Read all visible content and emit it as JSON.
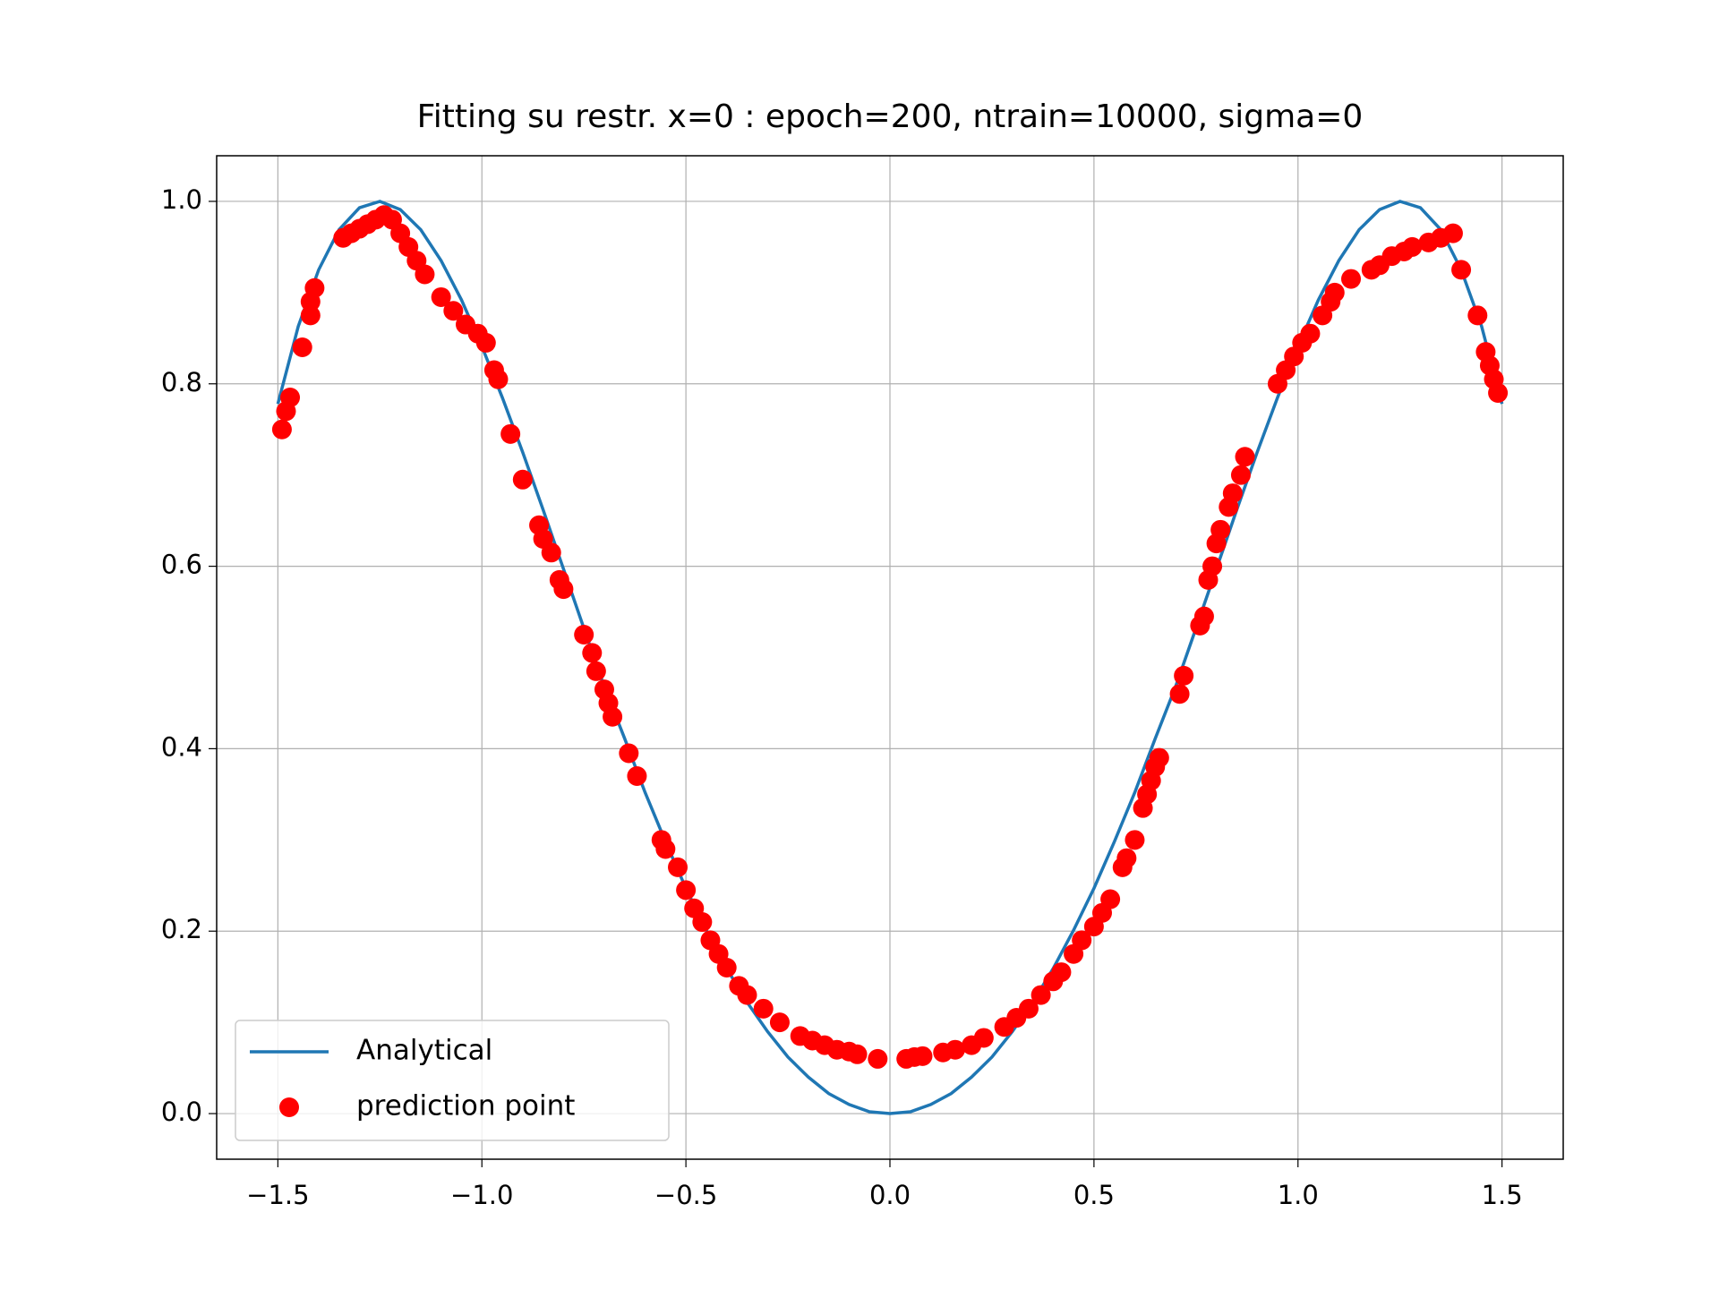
{
  "chart_data": {
    "type": "line",
    "title": "Fitting su restr. x=0 : epoch=200, ntrain=10000, sigma=0",
    "xlim": [
      -1.65,
      1.65
    ],
    "ylim": [
      -0.05,
      1.05
    ],
    "xticks": [
      {
        "value": -1.5,
        "label": "−1.5"
      },
      {
        "value": -1.0,
        "label": "−1.0"
      },
      {
        "value": -0.5,
        "label": "−0.5"
      },
      {
        "value": 0,
        "label": "0.0"
      },
      0.5,
      {
        "value": 1.0,
        "label": "1.0"
      },
      1.5
    ],
    "yticks": [
      {
        "value": 0,
        "label": "0.0"
      },
      0.2,
      0.4,
      0.6,
      0.8,
      {
        "value": 1.0,
        "label": "1.0"
      }
    ],
    "grid": true,
    "legend": "lower left",
    "series": [
      {
        "name": "Analytical",
        "type": "line",
        "color": "#1f77b4",
        "x": [
          -1.5,
          -1.45,
          -1.4,
          -1.35,
          -1.3,
          -1.25,
          -1.2,
          -1.15,
          -1.1,
          -1.05,
          -1.0,
          -0.95,
          -0.9,
          -0.85,
          -0.8,
          -0.75,
          -0.7,
          -0.65,
          -0.6,
          -0.55,
          -0.5,
          -0.45,
          -0.4,
          -0.35,
          -0.3,
          -0.25,
          -0.2,
          -0.15,
          -0.1,
          -0.05,
          0,
          0.05,
          0.1,
          0.15,
          0.2,
          0.25,
          0.3,
          0.35,
          0.4,
          0.45,
          0.5,
          0.55,
          0.6,
          0.65,
          0.7,
          0.75,
          0.8,
          0.85,
          0.9,
          0.95,
          1.0,
          1.05,
          1.1,
          1.15,
          1.2,
          1.25,
          1.3,
          1.35,
          1.4,
          1.45,
          1.5
        ],
        "values": [
          0.778,
          0.863,
          0.925,
          0.969,
          0.993,
          1.0,
          0.991,
          0.969,
          0.935,
          0.892,
          0.841,
          0.785,
          0.725,
          0.662,
          0.597,
          0.532,
          0.468,
          0.411,
          0.352,
          0.298,
          0.247,
          0.201,
          0.159,
          0.122,
          0.09,
          0.062,
          0.04,
          0.022,
          0.01,
          0.002,
          0,
          0.002,
          0.01,
          0.022,
          0.04,
          0.062,
          0.09,
          0.122,
          0.159,
          0.201,
          0.247,
          0.298,
          0.352,
          0.411,
          0.468,
          0.532,
          0.597,
          0.662,
          0.725,
          0.785,
          0.841,
          0.892,
          0.935,
          0.969,
          0.991,
          1.0,
          0.993,
          0.969,
          0.925,
          0.863,
          0.778
        ]
      },
      {
        "name": "prediction point",
        "type": "scatter",
        "color": "#ff0000",
        "x": [
          -1.49,
          -1.48,
          -1.47,
          -1.44,
          -1.42,
          -1.42,
          -1.41,
          -1.34,
          -1.32,
          -1.3,
          -1.28,
          -1.26,
          -1.24,
          -1.22,
          -1.2,
          -1.18,
          -1.16,
          -1.14,
          -1.1,
          -1.07,
          -1.04,
          -1.01,
          -0.99,
          -0.97,
          -0.96,
          -0.93,
          -0.9,
          -0.86,
          -0.85,
          -0.83,
          -0.81,
          -0.8,
          -0.75,
          -0.73,
          -0.72,
          -0.7,
          -0.69,
          -0.68,
          -0.64,
          -0.62,
          -0.56,
          -0.55,
          -0.52,
          -0.5,
          -0.48,
          -0.46,
          -0.44,
          -0.42,
          -0.4,
          -0.37,
          -0.35,
          -0.31,
          -0.27,
          -0.22,
          -0.19,
          -0.16,
          -0.13,
          -0.1,
          -0.08,
          -0.03,
          0.04,
          0.06,
          0.08,
          0.13,
          0.16,
          0.2,
          0.23,
          0.28,
          0.31,
          0.34,
          0.37,
          0.4,
          0.42,
          0.45,
          0.47,
          0.5,
          0.52,
          0.54,
          0.57,
          0.58,
          0.6,
          0.62,
          0.63,
          0.64,
          0.65,
          0.66,
          0.71,
          0.72,
          0.76,
          0.77,
          0.78,
          0.79,
          0.8,
          0.81,
          0.83,
          0.84,
          0.86,
          0.87,
          0.95,
          0.97,
          0.99,
          1.01,
          1.03,
          1.06,
          1.08,
          1.09,
          1.13,
          1.18,
          1.2,
          1.23,
          1.26,
          1.28,
          1.32,
          1.35,
          1.38,
          1.4,
          1.44,
          1.46,
          1.47,
          1.48,
          1.49
        ],
        "values": [
          0.75,
          0.77,
          0.785,
          0.84,
          0.875,
          0.89,
          0.905,
          0.96,
          0.965,
          0.97,
          0.975,
          0.98,
          0.985,
          0.98,
          0.965,
          0.95,
          0.935,
          0.92,
          0.895,
          0.88,
          0.865,
          0.855,
          0.845,
          0.815,
          0.805,
          0.745,
          0.695,
          0.645,
          0.63,
          0.615,
          0.585,
          0.575,
          0.525,
          0.505,
          0.485,
          0.465,
          0.45,
          0.435,
          0.395,
          0.37,
          0.3,
          0.29,
          0.27,
          0.245,
          0.225,
          0.21,
          0.19,
          0.175,
          0.16,
          0.14,
          0.13,
          0.115,
          0.1,
          0.085,
          0.08,
          0.075,
          0.07,
          0.068,
          0.065,
          0.06,
          0.06,
          0.062,
          0.063,
          0.067,
          0.07,
          0.075,
          0.083,
          0.095,
          0.105,
          0.115,
          0.13,
          0.145,
          0.155,
          0.175,
          0.19,
          0.205,
          0.22,
          0.235,
          0.27,
          0.28,
          0.3,
          0.335,
          0.35,
          0.365,
          0.38,
          0.39,
          0.46,
          0.48,
          0.535,
          0.545,
          0.585,
          0.6,
          0.625,
          0.64,
          0.665,
          0.68,
          0.7,
          0.72,
          0.8,
          0.815,
          0.83,
          0.845,
          0.855,
          0.875,
          0.89,
          0.9,
          0.915,
          0.925,
          0.93,
          0.94,
          0.945,
          0.95,
          0.955,
          0.96,
          0.965,
          0.925,
          0.875,
          0.835,
          0.82,
          0.805,
          0.79
        ]
      }
    ]
  }
}
